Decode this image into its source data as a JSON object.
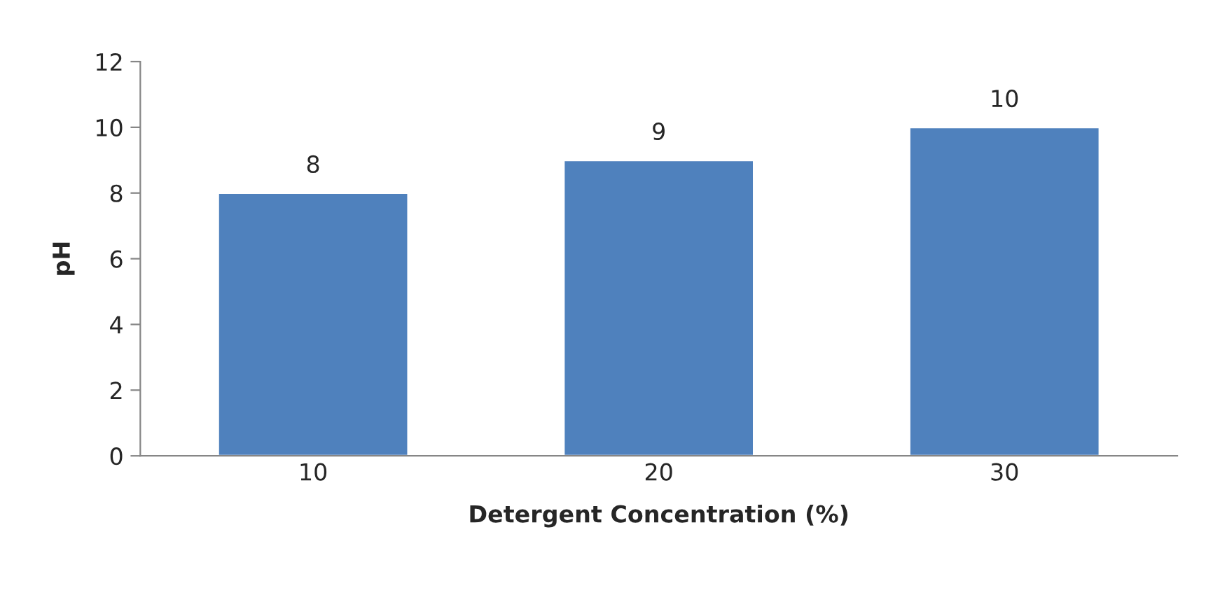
{
  "chart_data": {
    "type": "bar",
    "xlabel": "Detergent Concentration (%)",
    "ylabel": "pH",
    "categories": [
      "10",
      "20",
      "30"
    ],
    "values": [
      8,
      9,
      10
    ],
    "color": "#4f81bd",
    "ylim": [
      0,
      12
    ],
    "yticks": [
      0,
      2,
      4,
      6,
      8,
      10,
      12
    ],
    "grid": false,
    "data_labels": true
  }
}
